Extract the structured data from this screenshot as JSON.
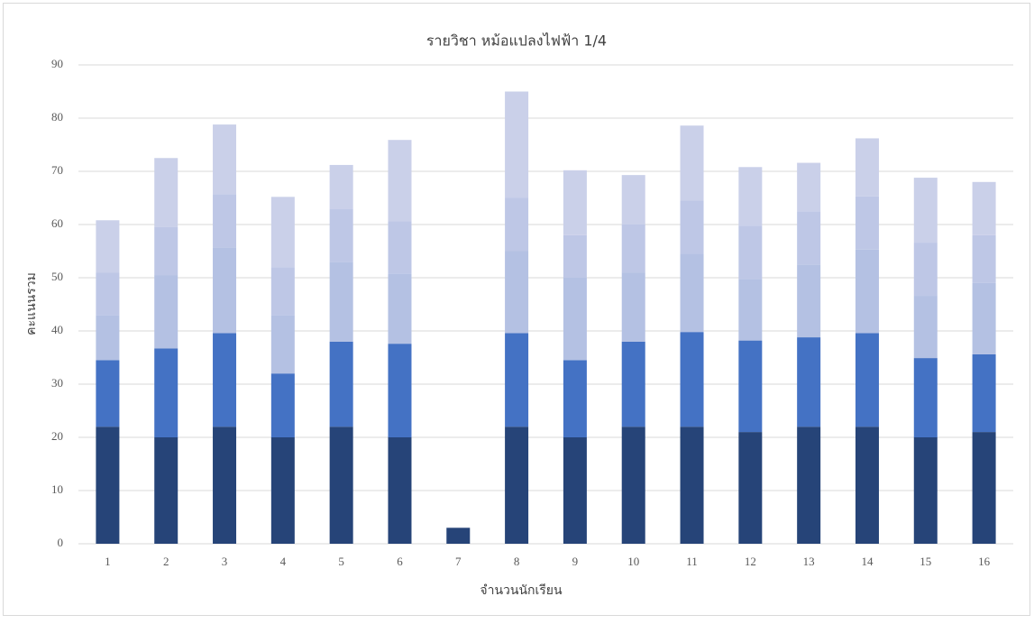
{
  "chart_data": {
    "type": "bar",
    "stacked": true,
    "title": "รายวิชา หม้อแปลงไฟฟ้า 1/4",
    "x_label": "จำนวนนักเรียน",
    "y_label": "คะแนนรวม",
    "categories": [
      "1",
      "2",
      "3",
      "4",
      "5",
      "6",
      "7",
      "8",
      "9",
      "10",
      "11",
      "12",
      "13",
      "14",
      "15",
      "16"
    ],
    "series": [
      {
        "color": "#264478",
        "values": [
          22,
          20,
          22,
          20,
          22,
          20,
          3,
          22,
          20,
          22,
          22,
          21,
          22,
          22,
          20,
          21
        ]
      },
      {
        "color": "#4472c4",
        "values": [
          12.5,
          16.7,
          17.6,
          12,
          16,
          17.6,
          0,
          17.6,
          14.5,
          16,
          17.8,
          17.2,
          16.8,
          17.6,
          14.9,
          14.6
        ]
      },
      {
        "color": "#b4c1e3",
        "values": [
          8.5,
          13.8,
          16.1,
          11,
          15,
          13.2,
          0,
          15.4,
          15.5,
          13,
          14.7,
          11.6,
          13.7,
          15.7,
          11.7,
          13.4
        ]
      },
      {
        "color": "#bec7e6",
        "values": [
          8,
          9,
          10,
          9,
          10,
          9.8,
          0,
          10,
          8,
          9,
          10,
          10,
          10,
          10,
          10,
          9
        ]
      },
      {
        "color": "#cad0e9",
        "values": [
          9.8,
          13,
          13.1,
          13.2,
          8.2,
          15.3,
          0,
          20,
          12.2,
          9.3,
          14.1,
          11,
          9.1,
          10.9,
          12.2,
          10
        ]
      }
    ],
    "ylim": [
      0,
      90
    ],
    "yticks": [
      0,
      10,
      20,
      30,
      40,
      50,
      60,
      70,
      80,
      90
    ],
    "grid": true
  }
}
